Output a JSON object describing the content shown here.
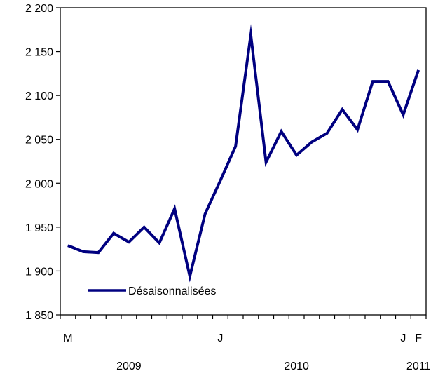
{
  "chart_data": {
    "type": "line",
    "title": "",
    "xlabel": "",
    "ylabel": "",
    "ylim": [
      1850,
      2200
    ],
    "y_ticks": [
      1850,
      1900,
      1950,
      2000,
      2050,
      2100,
      2150,
      2200
    ],
    "y_tick_labels": [
      "1 850",
      "1 900",
      "1 950",
      "2 000",
      "2 050",
      "2 100",
      "2 150",
      "2 200"
    ],
    "x": [
      "2009-03",
      "2009-04",
      "2009-05",
      "2009-06",
      "2009-07",
      "2009-08",
      "2009-09",
      "2009-10",
      "2009-11",
      "2009-12",
      "2010-01",
      "2010-02",
      "2010-03",
      "2010-04",
      "2010-05",
      "2010-06",
      "2010-07",
      "2010-08",
      "2010-09",
      "2010-10",
      "2010-11",
      "2010-12",
      "2011-01",
      "2011-02"
    ],
    "x_month_labels": [
      {
        "x": "2009-03",
        "text": "M"
      },
      {
        "x": "2010-01",
        "text": "J"
      },
      {
        "x": "2011-01",
        "text": "J"
      },
      {
        "x": "2011-02",
        "text": "F"
      }
    ],
    "x_year_labels": [
      {
        "x": "2009-07",
        "text": "2009"
      },
      {
        "x": "2010-06",
        "text": "2010"
      },
      {
        "x": "2011-02",
        "text": "2011"
      }
    ],
    "series": [
      {
        "name": "Désaisonnalisées",
        "color": "#000080",
        "values": [
          1929,
          1922,
          1921,
          1943,
          1933,
          1950,
          1932,
          1971,
          1894,
          1965,
          2003,
          2042,
          2169,
          2024,
          2059,
          2032,
          2047,
          2057,
          2084,
          2061,
          2116,
          2116,
          2078,
          2129
        ]
      }
    ],
    "legend_position": "bottom-left",
    "grid": false
  }
}
